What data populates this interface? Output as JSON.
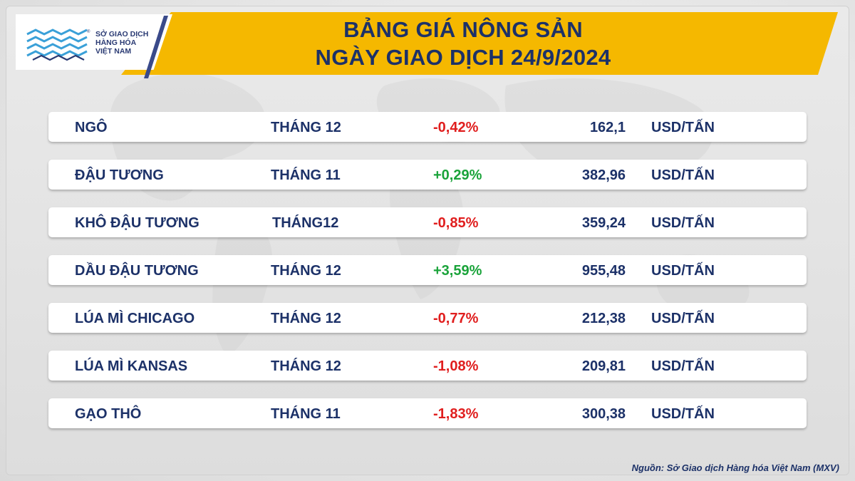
{
  "logo": {
    "lines": [
      "SỞ GIAO DỊCH",
      "HÀNG HÓA",
      "VIỆT NAM"
    ],
    "reg_mark": "®"
  },
  "header": {
    "title_line1": "BẢNG GIÁ NÔNG SẢN",
    "title_line2": "NGÀY GIAO DỊCH 24/9/2024"
  },
  "colors": {
    "accent": "#f5b800",
    "text": "#1c3168",
    "negative": "#e01e1e",
    "positive": "#1aa33a"
  },
  "rows": [
    {
      "name": "NGÔ",
      "month": "THÁNG 12",
      "change": "-0,42%",
      "direction": "down",
      "price": "162,1",
      "unit": "USD/TẤN"
    },
    {
      "name": "ĐẬU TƯƠNG",
      "month": "THÁNG 11",
      "change": "+0,29%",
      "direction": "up",
      "price": "382,96",
      "unit": "USD/TẤN"
    },
    {
      "name": "KHÔ ĐẬU TƯƠNG",
      "month": "THÁNG12",
      "change": "-0,85%",
      "direction": "down",
      "price": "359,24",
      "unit": "USD/TẤN"
    },
    {
      "name": "DẦU ĐẬU TƯƠNG",
      "month": "THÁNG 12",
      "change": "+3,59%",
      "direction": "up",
      "price": "955,48",
      "unit": "USD/TẤN"
    },
    {
      "name": "LÚA MÌ CHICAGO",
      "month": "THÁNG 12",
      "change": "-0,77%",
      "direction": "down",
      "price": "212,38",
      "unit": "USD/TẤN"
    },
    {
      "name": "LÚA MÌ KANSAS",
      "month": "THÁNG 12",
      "change": "-1,08%",
      "direction": "down",
      "price": "209,81",
      "unit": "USD/TẤN"
    },
    {
      "name": "GẠO THÔ",
      "month": "THÁNG 11",
      "change": "-1,83%",
      "direction": "down",
      "price": "300,38",
      "unit": "USD/TẤN"
    }
  ],
  "source": "Nguồn: Sở Giao dịch Hàng hóa Việt Nam (MXV)"
}
